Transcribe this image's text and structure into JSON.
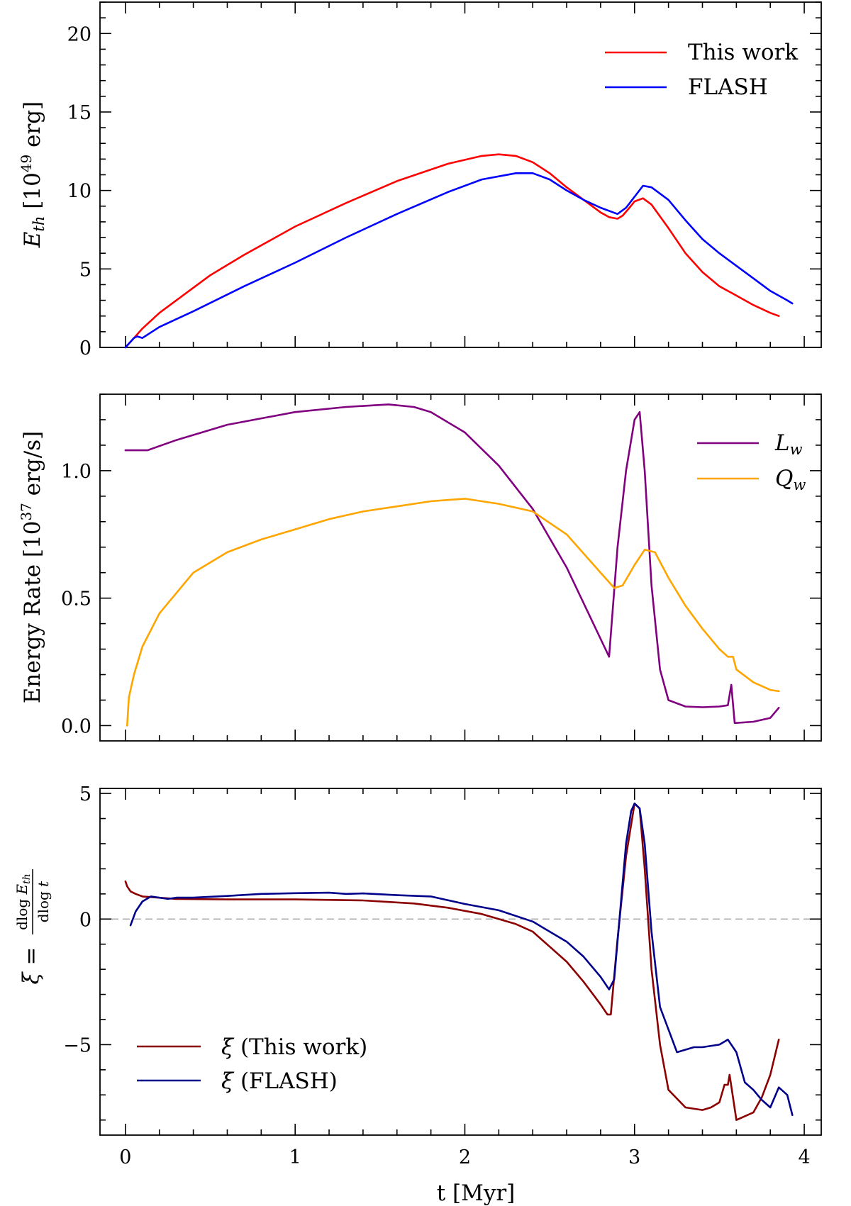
{
  "chart_data": [
    {
      "type": "line",
      "xlabel": "",
      "ylabel": "E_th [10^49 erg]",
      "xlim": [
        -0.15,
        4.1
      ],
      "ylim": [
        0,
        22
      ],
      "yticks": [
        "0",
        "5",
        "10",
        "15",
        "20"
      ],
      "yticks_values": [
        0,
        5,
        10,
        15,
        20
      ],
      "legend_position": "top-right",
      "series": [
        {
          "name": "This work",
          "color": "#ff0000",
          "x": [
            0.0,
            0.05,
            0.1,
            0.2,
            0.3,
            0.5,
            0.7,
            1.0,
            1.3,
            1.6,
            1.9,
            2.1,
            2.2,
            2.3,
            2.4,
            2.5,
            2.6,
            2.7,
            2.8,
            2.85,
            2.9,
            2.93,
            2.97,
            3.0,
            3.05,
            3.1,
            3.2,
            3.3,
            3.4,
            3.5,
            3.6,
            3.7,
            3.8,
            3.85
          ],
          "y": [
            0.0,
            0.6,
            1.2,
            2.2,
            3.0,
            4.6,
            5.9,
            7.7,
            9.2,
            10.6,
            11.7,
            12.2,
            12.3,
            12.2,
            11.8,
            11.1,
            10.2,
            9.4,
            8.6,
            8.3,
            8.2,
            8.4,
            8.9,
            9.3,
            9.5,
            9.1,
            7.6,
            6.0,
            4.8,
            3.9,
            3.3,
            2.7,
            2.2,
            2.0
          ]
        },
        {
          "name": "FLASH",
          "color": "#0000ff",
          "x": [
            0.0,
            0.05,
            0.07,
            0.1,
            0.2,
            0.4,
            0.7,
            1.0,
            1.3,
            1.6,
            1.9,
            2.1,
            2.3,
            2.4,
            2.5,
            2.6,
            2.7,
            2.8,
            2.9,
            2.95,
            3.0,
            3.05,
            3.1,
            3.2,
            3.3,
            3.4,
            3.5,
            3.6,
            3.7,
            3.8,
            3.9,
            3.93
          ],
          "y": [
            0.0,
            0.6,
            0.7,
            0.6,
            1.3,
            2.3,
            3.9,
            5.4,
            7.0,
            8.5,
            9.9,
            10.7,
            11.1,
            11.1,
            10.7,
            10.0,
            9.4,
            8.9,
            8.5,
            8.9,
            9.6,
            10.3,
            10.2,
            9.4,
            8.1,
            6.9,
            6.0,
            5.2,
            4.4,
            3.6,
            3.0,
            2.8
          ]
        }
      ]
    },
    {
      "type": "line",
      "xlabel": "",
      "ylabel": "Energy Rate [10^37 erg/s]",
      "xlim": [
        -0.15,
        4.1
      ],
      "ylim": [
        -0.06,
        1.3
      ],
      "yticks": [
        "0.0",
        "0.5",
        "1.0"
      ],
      "yticks_values": [
        0.0,
        0.5,
        1.0
      ],
      "legend_position": "top-right",
      "series": [
        {
          "name": "L_w",
          "color": "#800080",
          "x": [
            0.0,
            0.05,
            0.13,
            0.3,
            0.6,
            1.0,
            1.3,
            1.55,
            1.7,
            1.8,
            2.0,
            2.2,
            2.4,
            2.6,
            2.85,
            2.9,
            2.95,
            3.0,
            3.03,
            3.06,
            3.1,
            3.15,
            3.2,
            3.3,
            3.4,
            3.5,
            3.55,
            3.57,
            3.59,
            3.7,
            3.8,
            3.85
          ],
          "y": [
            1.08,
            1.08,
            1.08,
            1.12,
            1.18,
            1.23,
            1.25,
            1.26,
            1.25,
            1.23,
            1.15,
            1.02,
            0.85,
            0.62,
            0.27,
            0.7,
            1.0,
            1.2,
            1.23,
            1.0,
            0.55,
            0.22,
            0.1,
            0.075,
            0.072,
            0.075,
            0.08,
            0.16,
            0.01,
            0.015,
            0.03,
            0.07
          ]
        },
        {
          "name": "Q_w",
          "color": "#ffa500",
          "x": [
            0.01,
            0.02,
            0.05,
            0.1,
            0.2,
            0.4,
            0.6,
            0.8,
            1.0,
            1.2,
            1.4,
            1.6,
            1.8,
            2.0,
            2.2,
            2.4,
            2.6,
            2.8,
            2.88,
            2.93,
            3.0,
            3.06,
            3.12,
            3.2,
            3.3,
            3.4,
            3.5,
            3.55,
            3.58,
            3.6,
            3.7,
            3.8,
            3.85
          ],
          "y": [
            0.0,
            0.11,
            0.2,
            0.31,
            0.44,
            0.6,
            0.68,
            0.73,
            0.77,
            0.81,
            0.84,
            0.86,
            0.88,
            0.89,
            0.87,
            0.84,
            0.75,
            0.6,
            0.54,
            0.55,
            0.63,
            0.69,
            0.68,
            0.58,
            0.47,
            0.38,
            0.3,
            0.27,
            0.27,
            0.22,
            0.17,
            0.14,
            0.135
          ]
        }
      ]
    },
    {
      "type": "line",
      "xlabel": "t [Myr]",
      "ylabel": "ξ = dlog E_th / dlog t",
      "xlim": [
        -0.15,
        4.1
      ],
      "ylim": [
        -8.6,
        5.2
      ],
      "yticks": [
        "−5",
        "0",
        "5"
      ],
      "yticks_values": [
        -5,
        0,
        5
      ],
      "xticks": [
        "0",
        "1",
        "2",
        "3",
        "4"
      ],
      "xticks_values": [
        0,
        1,
        2,
        3,
        4
      ],
      "reference_line": {
        "y": 0,
        "style": "dashed",
        "color": "#aaaaaa"
      },
      "legend_position": "bottom-left",
      "series": [
        {
          "name": "ξ (This work)",
          "color": "#8b0000",
          "x": [
            0.0,
            0.01,
            0.03,
            0.06,
            0.1,
            0.3,
            0.6,
            1.0,
            1.4,
            1.7,
            1.9,
            2.1,
            2.3,
            2.4,
            2.5,
            2.6,
            2.7,
            2.8,
            2.84,
            2.86,
            2.9,
            2.95,
            3.0,
            3.03,
            3.06,
            3.1,
            3.15,
            3.2,
            3.3,
            3.4,
            3.45,
            3.5,
            3.53,
            3.55,
            3.56,
            3.6,
            3.7,
            3.75,
            3.8,
            3.85
          ],
          "y": [
            1.5,
            1.3,
            1.1,
            1.0,
            0.9,
            0.8,
            0.78,
            0.78,
            0.74,
            0.62,
            0.45,
            0.2,
            -0.2,
            -0.5,
            -1.1,
            -1.7,
            -2.5,
            -3.4,
            -3.8,
            -3.8,
            -0.8,
            2.5,
            4.6,
            4.4,
            2.0,
            -2.0,
            -5.0,
            -6.8,
            -7.5,
            -7.6,
            -7.5,
            -7.3,
            -6.6,
            -6.6,
            -6.2,
            -8.0,
            -7.7,
            -7.1,
            -6.2,
            -4.8
          ]
        },
        {
          "name": "ξ (FLASH)",
          "color": "#00008b",
          "x": [
            0.03,
            0.06,
            0.1,
            0.15,
            0.2,
            0.25,
            0.3,
            0.4,
            0.6,
            0.8,
            1.0,
            1.2,
            1.3,
            1.4,
            1.6,
            1.8,
            2.0,
            2.2,
            2.4,
            2.6,
            2.7,
            2.8,
            2.85,
            2.88,
            2.95,
            2.98,
            3.0,
            3.03,
            3.06,
            3.1,
            3.15,
            3.25,
            3.35,
            3.4,
            3.5,
            3.55,
            3.6,
            3.65,
            3.7,
            3.75,
            3.8,
            3.85,
            3.9,
            3.93
          ],
          "y": [
            -0.25,
            0.3,
            0.7,
            0.9,
            0.85,
            0.8,
            0.85,
            0.85,
            0.92,
            1.0,
            1.03,
            1.05,
            1.0,
            1.02,
            0.95,
            0.9,
            0.6,
            0.35,
            -0.1,
            -0.9,
            -1.5,
            -2.3,
            -2.8,
            -2.4,
            3.0,
            4.3,
            4.6,
            4.4,
            3.0,
            -0.5,
            -3.5,
            -5.3,
            -5.1,
            -5.1,
            -5.0,
            -4.8,
            -5.3,
            -6.5,
            -6.8,
            -7.2,
            -7.5,
            -6.7,
            -7.0,
            -7.8
          ]
        }
      ]
    }
  ],
  "legend_labels": {
    "this_work": "This work",
    "flash": "FLASH",
    "xi_this_work": "(This work)",
    "xi_flash": "(FLASH)",
    "xi_symbol": "ξ"
  },
  "axis_labels": {
    "panel1_y_E": "E",
    "panel1_y_sub": "th",
    "panel1_y_unit_open": "[10",
    "panel1_y_exp": "49",
    "panel1_y_unit_close": "erg]",
    "panel2_y_prefix": "Energy Rate [10",
    "panel2_y_exp": "37",
    "panel2_y_suffix": "erg/s]",
    "panel3_y_xi": "ξ =",
    "panel3_y_num_d": "dlog",
    "panel3_y_num_E": "E",
    "panel3_y_num_sub": "th",
    "panel3_y_den": "dlog",
    "panel3_y_den_t": "t",
    "x_label": "t [Myr]",
    "Lw_L": "L",
    "Lw_sub": "w",
    "Qw_Q": "Q",
    "Qw_sub": "w"
  }
}
